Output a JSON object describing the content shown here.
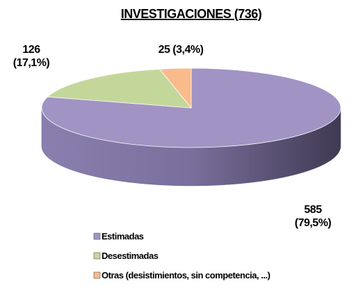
{
  "chart_data": {
    "type": "pie",
    "title": "INVESTIGACIONES (736)",
    "categories": [
      "Estimadas",
      "Desestimadas",
      "Otras (desistimientos, sin competencia, ...)"
    ],
    "values": [
      585,
      126,
      25
    ],
    "value_labels": [
      "585 (79,5%)",
      "126 (17,1%)",
      "25 (3,4%)"
    ],
    "colors": [
      "#a194c4",
      "#c4d79b",
      "#f9ba8c"
    ],
    "legend": "bottom-left"
  }
}
